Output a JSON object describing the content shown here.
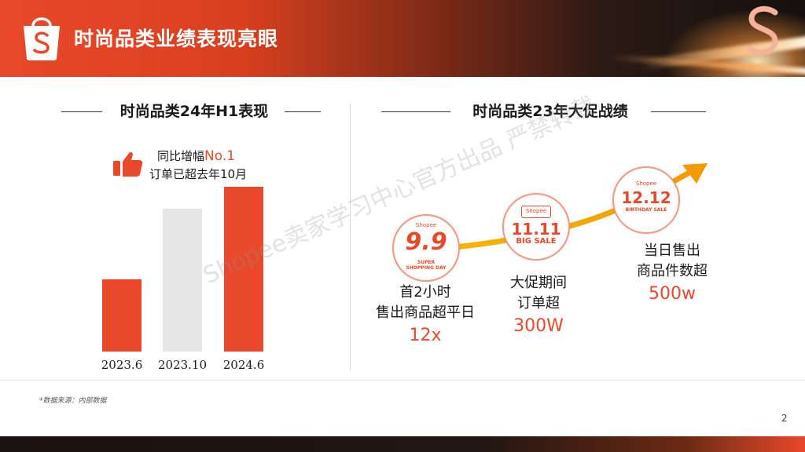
{
  "header": {
    "title": "时尚品类业绩表现亮眼"
  },
  "left": {
    "heading": "时尚品类24年H1表现",
    "callout": {
      "prefix": "同比增幅",
      "highlight": "No.1",
      "line2": "订单已超去年10月"
    },
    "colors": {
      "accent": "#e9482a",
      "muted": "#e6e6e6"
    },
    "chart_data": {
      "type": "bar",
      "categories": [
        "2023.6",
        "2023.10",
        "2024.6"
      ],
      "values": [
        1.0,
        1.98,
        2.29
      ],
      "title": "",
      "xlabel": "",
      "ylabel": ""
    }
  },
  "right": {
    "heading": "时尚品类23年大促战绩",
    "events": [
      {
        "badge_brand": "Shopee",
        "badge_main": "9.9",
        "badge_sub": "SUPER SHOPPING DAY",
        "line1": "首2小时",
        "line2": "售出商品超平日",
        "value": "12x"
      },
      {
        "badge_brand": "Shopee",
        "badge_main": "11.11",
        "badge_sub": "BIG SALE",
        "line1": "大促期间",
        "line2": "订单超",
        "value": "300W"
      },
      {
        "badge_brand": "Shopee",
        "badge_main": "12.12",
        "badge_sub": "BIRTHDAY SALE",
        "line1": "当日售出",
        "line2": "商品件数超",
        "value": "500w"
      }
    ]
  },
  "watermark": "Shopee卖家学习中心官方出品 严禁转载",
  "footer": {
    "source": "*数据来源：内部数据",
    "page": "2"
  }
}
